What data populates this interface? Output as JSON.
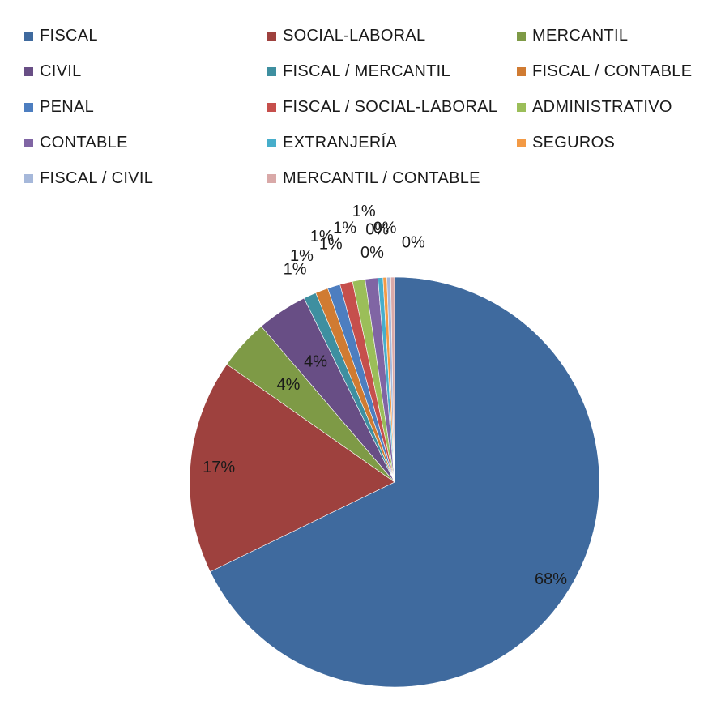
{
  "chart_data": {
    "type": "pie",
    "legend_position": "top",
    "slices": [
      {
        "label": "FISCAL",
        "value": 68,
        "data_label": "68%",
        "color": "#3F6A9E"
      },
      {
        "label": "SOCIAL-LABORAL",
        "value": 17,
        "data_label": "17%",
        "color": "#9E413E"
      },
      {
        "label": "MERCANTIL",
        "value": 4,
        "data_label": "4%",
        "color": "#7E9A46"
      },
      {
        "label": "CIVIL",
        "value": 4,
        "data_label": "4%",
        "color": "#684E85"
      },
      {
        "label": "FISCAL / MERCANTIL",
        "value": 1,
        "data_label": "1%",
        "color": "#3E8FA0"
      },
      {
        "label": "FISCAL / CONTABLE",
        "value": 1,
        "data_label": "1%",
        "color": "#D07B32"
      },
      {
        "label": "PENAL",
        "value": 1,
        "data_label": "1%",
        "color": "#4D7EC0"
      },
      {
        "label": "FISCAL / SOCIAL-LABORAL",
        "value": 1,
        "data_label": "1%",
        "color": "#C64F4C"
      },
      {
        "label": "ADMINISTRATIVO",
        "value": 1,
        "data_label": "1%",
        "color": "#9BBE59"
      },
      {
        "label": "CONTABLE",
        "value": 1,
        "data_label": "1%",
        "color": "#8065A4"
      },
      {
        "label": "EXTRANJERÍA",
        "value": 0.4,
        "data_label": "0%",
        "color": "#47AECB"
      },
      {
        "label": "SEGUROS",
        "value": 0.3,
        "data_label": "0%",
        "color": "#F39A45"
      },
      {
        "label": "FISCAL / CIVIL",
        "value": 0.3,
        "data_label": "0%",
        "color": "#A6B8DA"
      },
      {
        "label": "MERCANTIL / CONTABLE",
        "value": 0.3,
        "data_label": "0%",
        "color": "#D9A9A8"
      }
    ]
  }
}
